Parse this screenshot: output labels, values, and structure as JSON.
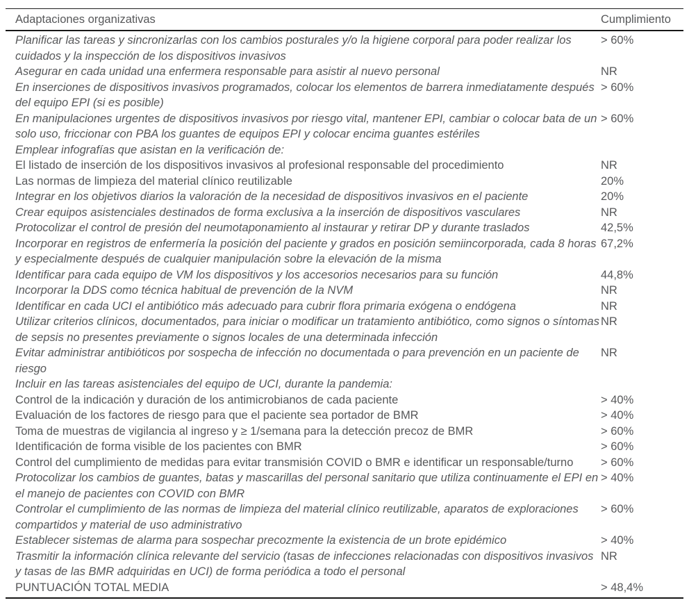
{
  "table": {
    "header": {
      "col1": "Adaptaciones organizativas",
      "col2": "Cumplimiento"
    },
    "rows": [
      {
        "text": "Planificar las tareas y sincronizarlas con los cambios posturales y/o la higiene corporal para poder realizar los cuidados y la inspección de los dispositivos invasivos",
        "value": "> 60%"
      },
      {
        "text": "Asegurar en cada unidad una enfermera responsable para asistir al nuevo personal",
        "value": "NR"
      },
      {
        "text": "En inserciones de dispositivos invasivos programados, colocar los elementos de barrera inmediatamente después del equipo EPI (si es posible)",
        "value": "> 60%"
      },
      {
        "text": "En manipulaciones urgentes de dispositivos invasivos por riesgo vital, mantener EPI, cambiar o colocar bata de un solo uso, friccionar con PBA los guantes de equipos EPI y colocar encima guantes estériles",
        "value": "> 60%"
      },
      {
        "text": "Emplear infografías que asistan en la verificación de:",
        "value": ""
      },
      {
        "text": "El listado de inserción de los dispositivos invasivos al profesional responsable del procedimiento",
        "value": "NR"
      },
      {
        "text": "Las normas de limpieza del material clínico reutilizable",
        "value": "20%"
      },
      {
        "text": "Integrar en los objetivos diarios la valoración de la necesidad de dispositivos invasivos en el paciente",
        "value": "20%"
      },
      {
        "text": "Crear equipos asistenciales destinados de forma exclusiva a la inserción de dispositivos vasculares",
        "value": "NR"
      },
      {
        "text": "Protocolizar el control de presión del neumotaponamiento al instaurar y retirar DP y durante traslados",
        "value": "42,5%"
      },
      {
        "text": "Incorporar en registros de enfermería la posición del paciente y grados en posición semiincorporada, cada 8 horas y especialmente después de cualquier manipulación sobre la elevación de la misma",
        "value": "67,2%"
      },
      {
        "text": "Identificar para cada equipo de VM los dispositivos y los accesorios necesarios para su función",
        "value": "44,8%"
      },
      {
        "text": "Incorporar la DDS como técnica habitual de prevención de la NVM",
        "value": "NR"
      },
      {
        "text": "Identificar en cada UCI el antibiótico más adecuado para cubrir flora primaria exógena o endógena",
        "value": "NR"
      },
      {
        "text": "Utilizar criterios clínicos, documentados, para iniciar o modificar un tratamiento antibiótico, como signos o síntomas de sepsis no presentes previamente o signos locales de una determinada infección",
        "value": "NR"
      },
      {
        "text": "Evitar administrar antibióticos por sospecha de infección no documentada o para prevención en un paciente de riesgo",
        "value": "NR"
      },
      {
        "text": "Incluir en las tareas asistenciales del equipo de UCI, durante la pandemia:",
        "value": ""
      },
      {
        "text": "Control de la indicación y duración de los antimicrobianos de cada paciente",
        "value": "> 40%"
      },
      {
        "text": "Evaluación de los factores de riesgo para que el paciente sea portador de BMR",
        "value": "> 40%"
      },
      {
        "text": "Toma de muestras de vigilancia al ingreso y ≥ 1/semana para la detección precoz de BMR",
        "value": "> 60%"
      },
      {
        "text": "Identificación de forma visible de los pacientes con BMR",
        "value": "> 60%"
      },
      {
        "text": "Control del cumplimiento de medidas para evitar transmisión COVID o BMR e identificar un responsable/turno",
        "value": "> 60%"
      },
      {
        "text": "Protocolizar los cambios de guantes, batas y mascarillas del personal sanitario que utiliza continuamente el EPI en el manejo de pacientes con COVID con BMR",
        "value": "> 40%"
      },
      {
        "text": "Controlar el cumplimiento de las normas de limpieza del material clínico reutilizable, aparatos de exploraciones compartidos y material de uso administrativo",
        "value": "> 60%"
      },
      {
        "text": "Establecer sistemas de alarma para sospechar precozmente la existencia de un brote epidémico",
        "value": "> 40%"
      },
      {
        "text": "Trasmitir la información clínica relevante del servicio (tasas de infecciones relacionadas con dispositivos invasivos y tasas de las BMR adquiridas en UCI) de forma periódica a todo el personal",
        "value": "NR"
      },
      {
        "text": "PUNTUACIÓN TOTAL MEDIA",
        "value": "> 48,4%"
      }
    ]
  }
}
